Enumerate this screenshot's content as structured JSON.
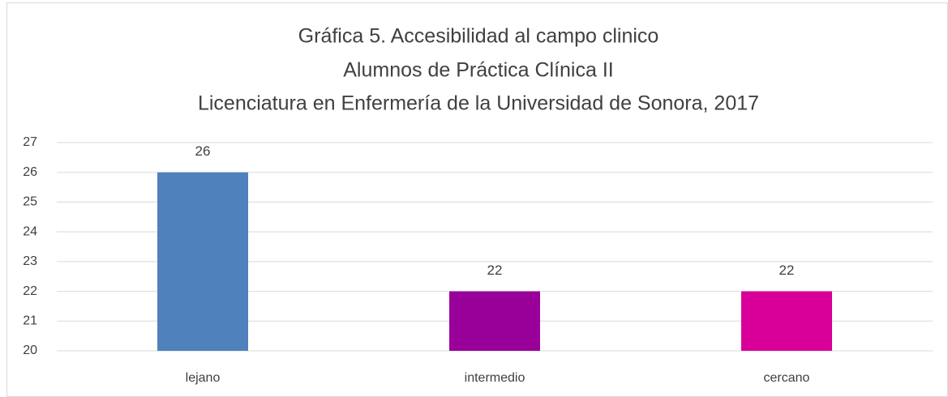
{
  "chart_data": {
    "type": "bar",
    "title": [
      "Gráfica  5. Accesibilidad al campo clinico",
      "Alumnos de Práctica Clínica II",
      "Licenciatura en Enfermería de la Universidad de Sonora, 2017"
    ],
    "categories": [
      "lejano",
      "intermedio",
      "cercano"
    ],
    "values": [
      26,
      22,
      22
    ],
    "colors": [
      "#4f81bd",
      "#990099",
      "#d9009a"
    ],
    "ylim": [
      20,
      27
    ],
    "yticks": [
      20,
      21,
      22,
      23,
      24,
      25,
      26,
      27
    ],
    "grid": true
  }
}
